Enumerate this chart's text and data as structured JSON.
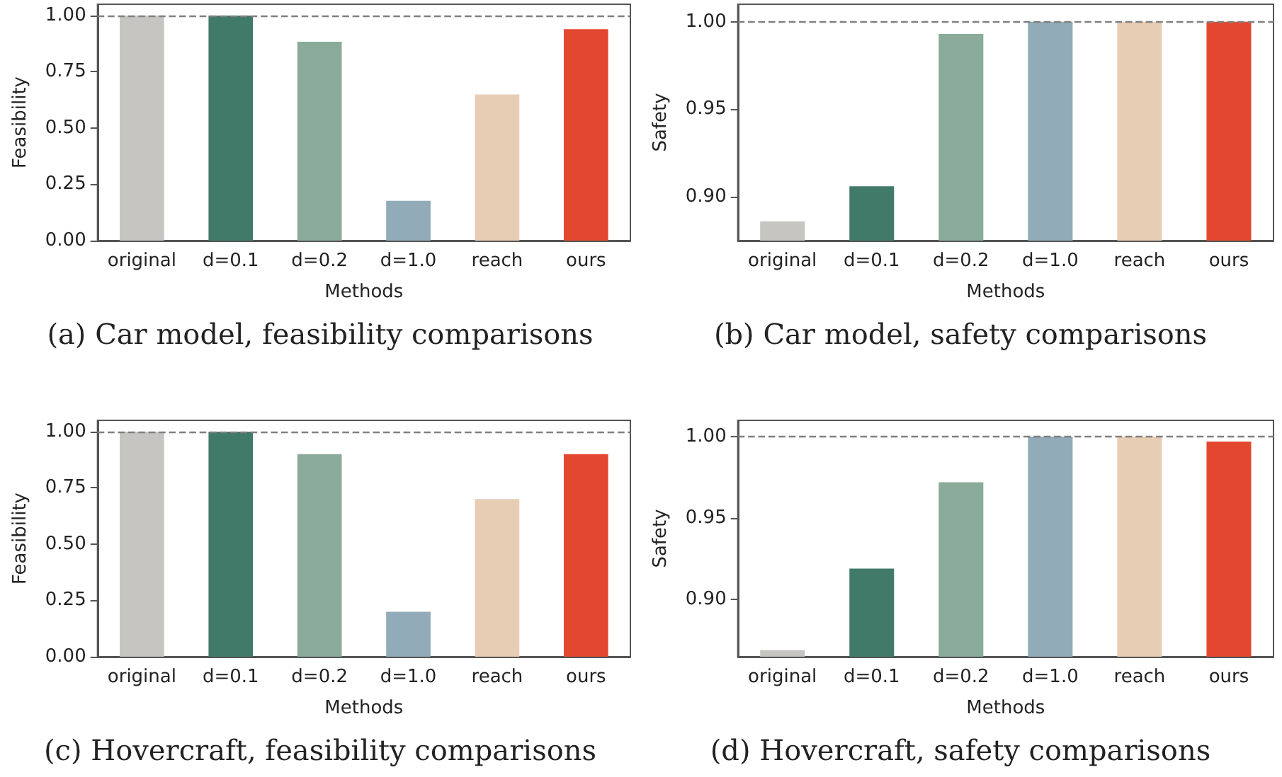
{
  "chart_data": [
    {
      "type": "bar",
      "title": "(a) Car model, feasibility comparisons",
      "xlabel": "Methods",
      "ylabel": "Feasibility",
      "categories": [
        "original",
        "d=0.1",
        "d=0.2",
        "d=1.0",
        "reach",
        "ours"
      ],
      "values": [
        1.0,
        1.0,
        0.883,
        0.177,
        0.649,
        0.939
      ],
      "colors": [
        "#c6c5c1",
        "#417a68",
        "#8aab9a",
        "#91abb8",
        "#e8cdb5",
        "#e4472f"
      ],
      "ylim": [
        0,
        1.05
      ],
      "yticks": [
        {
          "value": 0,
          "label": "0.00"
        },
        {
          "value": 0.25,
          "label": "0.25"
        },
        {
          "value": 0.5,
          "label": "0.50"
        },
        {
          "value": 0.75,
          "label": "0.75"
        },
        {
          "value": 1.0,
          "label": "1.00"
        }
      ],
      "ref_lines": [
        {
          "axis": "y",
          "value": 1.0,
          "color": "#808080",
          "line_style": "dashed"
        }
      ]
    },
    {
      "type": "bar",
      "title": "(b) Car model, safety comparisons",
      "xlabel": "Methods",
      "ylabel": "Safety",
      "categories": [
        "original",
        "d=0.1",
        "d=0.2",
        "d=1.0",
        "reach",
        "ours"
      ],
      "values": [
        0.886,
        0.906,
        0.993,
        1.0,
        1.0,
        1.0
      ],
      "colors": [
        "#c6c5c1",
        "#417a68",
        "#8aab9a",
        "#91abb8",
        "#e8cdb5",
        "#e4472f"
      ],
      "ylim": [
        0.875,
        1.01
      ],
      "yticks": [
        {
          "value": 0.9,
          "label": "0.90"
        },
        {
          "value": 0.95,
          "label": "0.95"
        },
        {
          "value": 1.0,
          "label": "1.00"
        }
      ],
      "ref_lines": [
        {
          "axis": "y",
          "value": 1.0,
          "color": "#808080",
          "line_style": "dashed"
        }
      ]
    },
    {
      "type": "bar",
      "title": "(c) Hovercraft, feasibility comparisons",
      "xlabel": "Methods",
      "ylabel": "Feasibility",
      "categories": [
        "original",
        "d=0.1",
        "d=0.2",
        "d=1.0",
        "reach",
        "ours"
      ],
      "values": [
        1.0,
        1.0,
        0.9,
        0.2,
        0.7,
        0.9
      ],
      "colors": [
        "#c6c5c1",
        "#417a68",
        "#8aab9a",
        "#91abb8",
        "#e8cdb5",
        "#e4472f"
      ],
      "ylim": [
        0,
        1.05
      ],
      "yticks": [
        {
          "value": 0,
          "label": "0.00"
        },
        {
          "value": 0.25,
          "label": "0.25"
        },
        {
          "value": 0.5,
          "label": "0.50"
        },
        {
          "value": 0.75,
          "label": "0.75"
        },
        {
          "value": 1.0,
          "label": "1.00"
        }
      ],
      "ref_lines": [
        {
          "axis": "y",
          "value": 1.0,
          "color": "#808080",
          "line_style": "dashed"
        }
      ]
    },
    {
      "type": "bar",
      "title": "(d) Hovercraft, safety comparisons",
      "xlabel": "Methods",
      "ylabel": "Safety",
      "categories": [
        "original",
        "d=0.1",
        "d=0.2",
        "d=1.0",
        "reach",
        "ours"
      ],
      "values": [
        0.869,
        0.919,
        0.972,
        1.0,
        1.0,
        0.997
      ],
      "colors": [
        "#c6c5c1",
        "#417a68",
        "#8aab9a",
        "#91abb8",
        "#e8cdb5",
        "#e4472f"
      ],
      "ylim": [
        0.865,
        1.01
      ],
      "yticks": [
        {
          "value": 0.9,
          "label": "0.90"
        },
        {
          "value": 0.95,
          "label": "0.95"
        },
        {
          "value": 1.0,
          "label": "1.00"
        }
      ],
      "ref_lines": [
        {
          "axis": "y",
          "value": 1.0,
          "color": "#808080",
          "line_style": "dashed"
        }
      ]
    }
  ]
}
